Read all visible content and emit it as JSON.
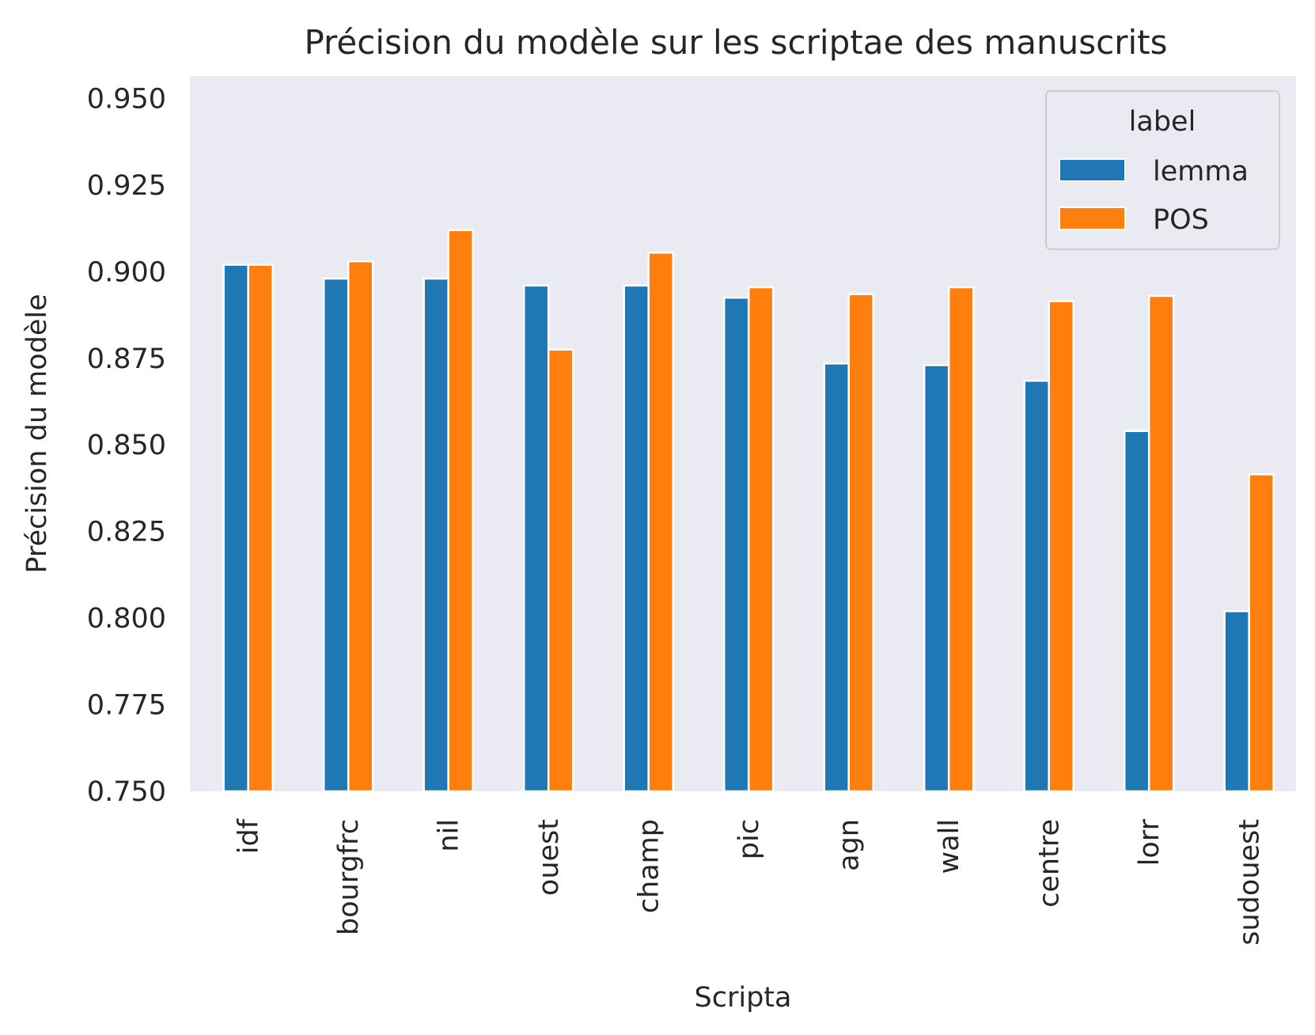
{
  "chart_data": {
    "type": "bar",
    "title": "Précision du modèle sur les scriptae des manuscrits",
    "xlabel": "Scripta",
    "ylabel": "Précision du modèle",
    "ylim": [
      0.75,
      0.9565
    ],
    "yticks": [
      "0.750",
      "0.775",
      "0.800",
      "0.825",
      "0.850",
      "0.875",
      "0.900",
      "0.925",
      "0.950"
    ],
    "categories": [
      "idf",
      "bourgfrc",
      "nil",
      "ouest",
      "champ",
      "pic",
      "agn",
      "wall",
      "centre",
      "lorr",
      "sudouest"
    ],
    "series": [
      {
        "name": "lemma",
        "color": "#1f77b4",
        "values": [
          0.902,
          0.898,
          0.898,
          0.896,
          0.896,
          0.8925,
          0.8735,
          0.873,
          0.8685,
          0.854,
          0.802
        ]
      },
      {
        "name": "POS",
        "color": "#ff7f0e",
        "values": [
          0.902,
          0.903,
          0.912,
          0.8775,
          0.9055,
          0.8955,
          0.8935,
          0.8955,
          0.8915,
          0.893,
          0.8415
        ]
      }
    ],
    "legend": {
      "title": "label",
      "position": "upper-right"
    },
    "grid": false,
    "background": "#eaeaf2"
  }
}
